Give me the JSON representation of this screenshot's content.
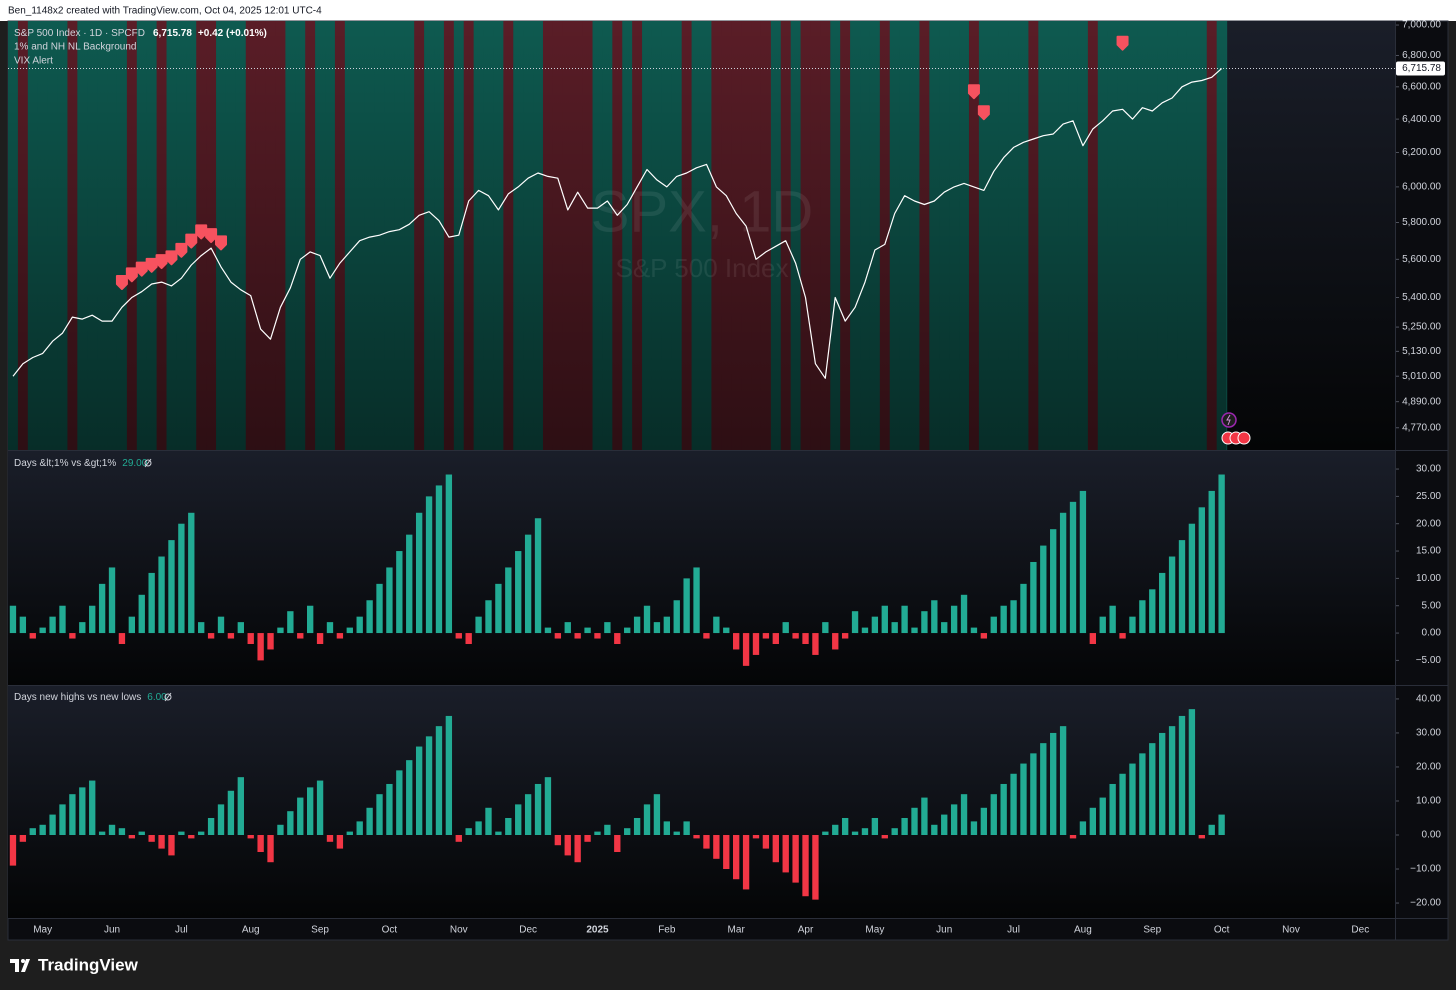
{
  "header": {
    "attribution": "Ben_1148x2 created with TradingView.com, Oct 04, 2025 12:01 UTC-4"
  },
  "chart_data": [
    {
      "type": "line",
      "title": "S&P 500 Index · 1D · SPCFD",
      "last_price": {
        "value": 6715.78,
        "label": "6,715.78"
      },
      "change_label": "+0.42 (+0.01%)",
      "watermark": "SPX, 1D",
      "log_scale": true,
      "ylim": [
        4670,
        7027
      ],
      "yticks": [
        {
          "value": 7000,
          "label": "7,000.00"
        },
        {
          "value": 6800,
          "label": "6,800.00"
        },
        {
          "value": 6600,
          "label": "6,600.00"
        },
        {
          "value": 6400,
          "label": "6,400.00"
        },
        {
          "value": 6200,
          "label": "6,200.00"
        },
        {
          "value": 6000,
          "label": "6,000.00"
        },
        {
          "value": 5800,
          "label": "5,800.00"
        },
        {
          "value": 5600,
          "label": "5,600.00"
        },
        {
          "value": 5400,
          "label": "5,400.00"
        },
        {
          "value": 5250,
          "label": "5,250.00"
        },
        {
          "value": 5130,
          "label": "5,130.00"
        },
        {
          "value": 5010,
          "label": "5,010.00"
        },
        {
          "value": 4890,
          "label": "4,890.00"
        },
        {
          "value": 4770,
          "label": "4,770.00"
        }
      ],
      "series": [
        {
          "name": "1% and NH NL Background",
          "type": "background",
          "color": "#5a1d27",
          "base_color": "#0e5a50",
          "values": [
            0,
            1,
            0,
            0,
            0,
            0,
            1,
            0,
            0,
            0,
            0,
            0,
            1,
            0,
            0,
            1,
            0,
            0,
            0,
            1,
            1,
            0,
            0,
            0,
            1,
            1,
            1,
            1,
            0,
            0,
            1,
            0,
            0,
            1,
            0,
            0,
            0,
            0,
            0,
            0,
            0,
            1,
            0,
            0,
            1,
            0,
            1,
            0,
            0,
            0,
            1,
            0,
            0,
            0,
            1,
            1,
            1,
            1,
            1,
            0,
            0,
            1,
            0,
            1,
            0,
            0,
            0,
            0,
            1,
            0,
            0,
            1,
            1,
            1,
            1,
            1,
            1,
            0,
            1,
            0,
            1,
            1,
            1,
            0,
            1,
            0,
            0,
            0,
            1,
            0,
            0,
            0,
            1,
            0,
            0,
            0,
            0,
            1,
            0,
            0,
            0,
            0,
            0,
            1,
            0,
            0,
            0,
            0,
            0,
            1,
            0,
            0,
            0,
            0,
            0,
            0,
            0,
            0,
            0,
            0,
            0,
            1,
            0,
            null,
            null,
            null,
            null,
            null,
            null,
            null,
            null,
            null,
            null,
            null,
            null,
            null,
            null,
            null,
            null,
            null
          ]
        },
        {
          "name": "S&P 500 Index",
          "type": "line",
          "color": "#ffffff",
          "values": [
            5010,
            5070,
            5100,
            5120,
            5180,
            5220,
            5300,
            5290,
            5310,
            5280,
            5280,
            5350,
            5400,
            5430,
            5470,
            5480,
            5460,
            5500,
            5570,
            5620,
            5660,
            5560,
            5480,
            5440,
            5410,
            5240,
            5190,
            5350,
            5450,
            5600,
            5640,
            5620,
            5500,
            5580,
            5640,
            5700,
            5720,
            5730,
            5750,
            5760,
            5790,
            5840,
            5860,
            5810,
            5720,
            5730,
            5920,
            5980,
            5950,
            5870,
            5960,
            6000,
            6050,
            6080,
            6060,
            6050,
            5870,
            5970,
            5880,
            5880,
            5920,
            5840,
            5900,
            6000,
            6100,
            6040,
            6000,
            6060,
            6080,
            6110,
            6130,
            6000,
            5950,
            5850,
            5780,
            5600,
            5640,
            5670,
            5700,
            5580,
            5400,
            5070,
            5000,
            5400,
            5280,
            5350,
            5480,
            5650,
            5680,
            5850,
            5950,
            5920,
            5900,
            5920,
            5970,
            6000,
            6020,
            6000,
            5980,
            6090,
            6170,
            6230,
            6260,
            6280,
            6300,
            6310,
            6370,
            6390,
            6240,
            6340,
            6390,
            6450,
            6460,
            6400,
            6470,
            6450,
            6500,
            6530,
            6600,
            6630,
            6640,
            6660,
            6715.78,
            null,
            null,
            null,
            null,
            null,
            null,
            null,
            null,
            null,
            null,
            null,
            null,
            null,
            null,
            null,
            null,
            null
          ]
        },
        {
          "name": "VIX Alert",
          "type": "marker",
          "color": "#f7525f",
          "values": [
            null,
            null,
            null,
            null,
            null,
            null,
            null,
            null,
            null,
            null,
            null,
            5470,
            5510,
            5540,
            5560,
            5580,
            5600,
            5640,
            5690,
            5740,
            5720,
            5680,
            null,
            null,
            null,
            null,
            null,
            null,
            null,
            null,
            null,
            null,
            null,
            null,
            null,
            null,
            null,
            null,
            null,
            null,
            null,
            null,
            null,
            null,
            null,
            null,
            null,
            null,
            null,
            null,
            null,
            null,
            null,
            null,
            null,
            null,
            null,
            null,
            null,
            null,
            null,
            null,
            null,
            null,
            null,
            null,
            null,
            null,
            null,
            null,
            null,
            null,
            null,
            null,
            null,
            null,
            null,
            null,
            null,
            null,
            null,
            null,
            null,
            null,
            null,
            null,
            null,
            null,
            null,
            null,
            null,
            null,
            null,
            null,
            null,
            null,
            null,
            6560,
            6430,
            null,
            null,
            null,
            null,
            null,
            null,
            null,
            null,
            null,
            null,
            null,
            null,
            null,
            6870,
            null,
            null,
            null,
            null,
            null,
            null,
            null,
            null,
            null,
            null,
            null,
            null,
            null,
            null,
            null,
            null,
            null
          ]
        }
      ]
    },
    {
      "type": "bar",
      "title": "Days &lt;1% vs &gt;1%",
      "last_value": {
        "value": 29,
        "label": "29.00"
      },
      "ylim": [
        -9.5,
        33.3
      ],
      "yticks": [
        {
          "value": 30,
          "label": "30.00"
        },
        {
          "value": 25,
          "label": "25.00"
        },
        {
          "value": 20,
          "label": "20.00"
        },
        {
          "value": 15,
          "label": "15.00"
        },
        {
          "value": 10,
          "label": "10.00"
        },
        {
          "value": 5,
          "label": "5.00"
        },
        {
          "value": 0,
          "label": "0.00"
        },
        {
          "value": -5,
          "label": "−5.00"
        }
      ],
      "series": [
        {
          "name": "Days &lt;1% vs &gt;1%",
          "color": "#22ab94",
          "negative_color": "#f23645",
          "values": [
            5,
            3,
            -1,
            1,
            3,
            5,
            -1,
            2,
            5,
            9,
            12,
            -2,
            3,
            7,
            11,
            14,
            17,
            20,
            22,
            2,
            -1,
            3,
            -1,
            2,
            -2,
            -5,
            -3,
            1,
            4,
            -1,
            5,
            -2,
            2,
            -1,
            1,
            3,
            6,
            9,
            12,
            15,
            18,
            22,
            25,
            27,
            29,
            -1,
            -2,
            3,
            6,
            9,
            12,
            15,
            18,
            21,
            1,
            -1,
            2,
            -1,
            1,
            -1,
            2,
            -2,
            1,
            3,
            5,
            2,
            3,
            6,
            10,
            12,
            -1,
            3,
            1,
            -3,
            -6,
            -4,
            -1,
            -2,
            2,
            -1,
            -2,
            -4,
            2,
            -3,
            -1,
            4,
            1,
            3,
            5,
            2,
            5,
            1,
            4,
            6,
            2,
            5,
            7,
            1,
            -1,
            3,
            5,
            6,
            9,
            13,
            16,
            19,
            22,
            24,
            26,
            -2,
            3,
            5,
            -1,
            3,
            6,
            8,
            11,
            14,
            17,
            20,
            23,
            26,
            29,
            null,
            null,
            null,
            null,
            null,
            null,
            null,
            null,
            null,
            null,
            null,
            null,
            null,
            null,
            null,
            null,
            null
          ]
        }
      ]
    },
    {
      "type": "bar",
      "title": "Days new highs vs new lows",
      "last_value": {
        "value": 6,
        "label": "6.00"
      },
      "ylim": [
        -24.4,
        43.8
      ],
      "yticks": [
        {
          "value": 40,
          "label": "40.00"
        },
        {
          "value": 30,
          "label": "30.00"
        },
        {
          "value": 20,
          "label": "20.00"
        },
        {
          "value": 10,
          "label": "10.00"
        },
        {
          "value": 0,
          "label": "0.00"
        },
        {
          "value": -10,
          "label": "−10.00"
        },
        {
          "value": -20,
          "label": "−20.00"
        }
      ],
      "categories": [
        null,
        null,
        null,
        "May",
        null,
        null,
        null,
        null,
        null,
        null,
        "Jun",
        null,
        null,
        null,
        null,
        null,
        null,
        "Jul",
        null,
        null,
        null,
        null,
        null,
        null,
        "Aug",
        null,
        null,
        null,
        null,
        null,
        null,
        "Sep",
        null,
        null,
        null,
        null,
        null,
        null,
        "Oct",
        null,
        null,
        null,
        null,
        null,
        null,
        "Nov",
        null,
        null,
        null,
        null,
        null,
        null,
        "Dec",
        null,
        null,
        null,
        null,
        null,
        null,
        "2025",
        null,
        null,
        null,
        null,
        null,
        null,
        "Feb",
        null,
        null,
        null,
        null,
        null,
        null,
        "Mar",
        null,
        null,
        null,
        null,
        null,
        null,
        "Apr",
        null,
        null,
        null,
        null,
        null,
        null,
        "May",
        null,
        null,
        null,
        null,
        null,
        null,
        "Jun",
        null,
        null,
        null,
        null,
        null,
        null,
        "Jul",
        null,
        null,
        null,
        null,
        null,
        null,
        "Aug",
        null,
        null,
        null,
        null,
        null,
        null,
        "Sep",
        null,
        null,
        null,
        null,
        null,
        null,
        "Oct",
        null,
        null,
        null,
        null,
        null,
        null,
        "Nov",
        null,
        null,
        null,
        null,
        null,
        null,
        "Dec",
        null,
        null,
        null
      ],
      "series": [
        {
          "name": "Days new highs vs new lows",
          "color": "#22ab94",
          "negative_color": "#f23645",
          "values": [
            -9,
            -2,
            2,
            3,
            6,
            9,
            12,
            14,
            16,
            1,
            3,
            2,
            -1,
            1,
            -2,
            -4,
            -6,
            1,
            -1,
            1,
            5,
            9,
            13,
            17,
            -1,
            -5,
            -8,
            3,
            7,
            11,
            14,
            16,
            -2,
            -4,
            1,
            4,
            8,
            12,
            15,
            19,
            22,
            26,
            29,
            32,
            35,
            -2,
            2,
            4,
            8,
            1,
            5,
            9,
            12,
            15,
            17,
            -3,
            -6,
            -8,
            -2,
            1,
            3,
            -5,
            2,
            5,
            9,
            12,
            4,
            1,
            4,
            -1,
            -4,
            -7,
            -10,
            -13,
            -16,
            -1,
            -4,
            -8,
            -11,
            -14,
            -18,
            -19,
            1,
            3,
            5,
            1,
            2,
            5,
            -1,
            2,
            5,
            8,
            11,
            3,
            6,
            9,
            12,
            4,
            8,
            12,
            15,
            18,
            21,
            24,
            27,
            30,
            32,
            -1,
            4,
            8,
            11,
            15,
            18,
            21,
            24,
            27,
            30,
            32,
            35,
            37,
            -1,
            3,
            6,
            null,
            null,
            null,
            null,
            null,
            null,
            null,
            null,
            null,
            null,
            null,
            null,
            null,
            null,
            null,
            null,
            null
          ]
        }
      ]
    }
  ],
  "footer": {
    "brand": "TradingView"
  }
}
